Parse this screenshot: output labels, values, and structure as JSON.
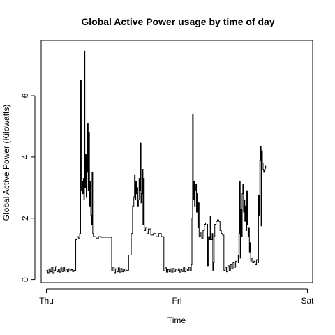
{
  "chart_data": {
    "type": "line",
    "title": "Global Active Power usage by time of day",
    "xlabel": "Time",
    "ylabel": "Global Active Power (Kilowatts)",
    "x_ticks": [
      {
        "value": 0,
        "label": "Thu"
      },
      {
        "value": 1,
        "label": "Fri"
      },
      {
        "value": 2,
        "label": "Sat"
      }
    ],
    "y_ticks": [
      0,
      2,
      4,
      6
    ],
    "xlim": [
      -0.04,
      2.04
    ],
    "ylim": [
      -0.1,
      7.8
    ],
    "grid": false,
    "legend": "none",
    "line_color": "#000000",
    "series": [
      {
        "values": [
          [
            0.0,
            0.3
          ],
          [
            0.01,
            0.22
          ],
          [
            0.02,
            0.35
          ],
          [
            0.03,
            0.25
          ],
          [
            0.04,
            0.4
          ],
          [
            0.05,
            0.22
          ],
          [
            0.06,
            0.3
          ],
          [
            0.07,
            0.42
          ],
          [
            0.08,
            0.25
          ],
          [
            0.09,
            0.33
          ],
          [
            0.1,
            0.24
          ],
          [
            0.11,
            0.38
          ],
          [
            0.12,
            0.26
          ],
          [
            0.13,
            0.4
          ],
          [
            0.14,
            0.27
          ],
          [
            0.15,
            0.33
          ],
          [
            0.16,
            0.25
          ],
          [
            0.17,
            0.35
          ],
          [
            0.18,
            0.28
          ],
          [
            0.19,
            0.32
          ],
          [
            0.2,
            0.26
          ],
          [
            0.21,
            0.3
          ],
          [
            0.225,
            1.3
          ],
          [
            0.235,
            1.4
          ],
          [
            0.245,
            1.35
          ],
          [
            0.255,
            1.5
          ],
          [
            0.262,
            6.5
          ],
          [
            0.268,
            2.9
          ],
          [
            0.272,
            3.2
          ],
          [
            0.278,
            2.8
          ],
          [
            0.283,
            3.3
          ],
          [
            0.287,
            2.6
          ],
          [
            0.291,
            7.45
          ],
          [
            0.295,
            3.0
          ],
          [
            0.3,
            4.1
          ],
          [
            0.305,
            2.7
          ],
          [
            0.31,
            3.5
          ],
          [
            0.315,
            5.1
          ],
          [
            0.32,
            2.9
          ],
          [
            0.325,
            4.8
          ],
          [
            0.33,
            2.4
          ],
          [
            0.335,
            3.2
          ],
          [
            0.34,
            2.1
          ],
          [
            0.345,
            1.8
          ],
          [
            0.35,
            3.5
          ],
          [
            0.355,
            1.5
          ],
          [
            0.36,
            1.4
          ],
          [
            0.38,
            1.35
          ],
          [
            0.4,
            1.4
          ],
          [
            0.42,
            1.38
          ],
          [
            0.5,
            0.28
          ],
          [
            0.51,
            0.4
          ],
          [
            0.52,
            0.22
          ],
          [
            0.53,
            0.35
          ],
          [
            0.54,
            0.25
          ],
          [
            0.55,
            0.38
          ],
          [
            0.56,
            0.24
          ],
          [
            0.57,
            0.36
          ],
          [
            0.58,
            0.25
          ],
          [
            0.59,
            0.33
          ],
          [
            0.6,
            0.27
          ],
          [
            0.61,
            0.3
          ],
          [
            0.63,
            0.8
          ],
          [
            0.65,
            1.5
          ],
          [
            0.66,
            2.4
          ],
          [
            0.67,
            2.7
          ],
          [
            0.675,
            3.4
          ],
          [
            0.68,
            2.6
          ],
          [
            0.685,
            3.2
          ],
          [
            0.69,
            2.8
          ],
          [
            0.695,
            3.0
          ],
          [
            0.7,
            2.4
          ],
          [
            0.705,
            2.6
          ],
          [
            0.71,
            3.3
          ],
          [
            0.715,
            2.9
          ],
          [
            0.72,
            4.45
          ],
          [
            0.725,
            2.5
          ],
          [
            0.73,
            2.8
          ],
          [
            0.735,
            3.6
          ],
          [
            0.74,
            1.8
          ],
          [
            0.745,
            3.3
          ],
          [
            0.75,
            1.6
          ],
          [
            0.76,
            1.7
          ],
          [
            0.77,
            1.5
          ],
          [
            0.78,
            1.65
          ],
          [
            0.8,
            1.45
          ],
          [
            0.82,
            1.5
          ],
          [
            0.84,
            1.4
          ],
          [
            0.86,
            1.5
          ],
          [
            0.88,
            1.4
          ],
          [
            0.9,
            0.28
          ],
          [
            0.91,
            0.38
          ],
          [
            0.92,
            0.24
          ],
          [
            0.93,
            0.33
          ],
          [
            0.94,
            0.25
          ],
          [
            0.95,
            0.35
          ],
          [
            0.96,
            0.24
          ],
          [
            0.97,
            0.36
          ],
          [
            0.98,
            0.26
          ],
          [
            0.99,
            0.33
          ],
          [
            1.0,
            0.28
          ],
          [
            1.01,
            0.35
          ],
          [
            1.02,
            0.24
          ],
          [
            1.03,
            0.32
          ],
          [
            1.04,
            0.26
          ],
          [
            1.05,
            0.4
          ],
          [
            1.06,
            0.25
          ],
          [
            1.07,
            0.34
          ],
          [
            1.08,
            0.3
          ],
          [
            1.09,
            0.4
          ],
          [
            1.1,
            0.28
          ],
          [
            1.11,
            0.5
          ],
          [
            1.115,
            2.0
          ],
          [
            1.12,
            5.4
          ],
          [
            1.125,
            2.6
          ],
          [
            1.13,
            3.2
          ],
          [
            1.135,
            2.4
          ],
          [
            1.14,
            2.9
          ],
          [
            1.145,
            3.1
          ],
          [
            1.15,
            2.2
          ],
          [
            1.155,
            2.8
          ],
          [
            1.16,
            1.7
          ],
          [
            1.165,
            2.5
          ],
          [
            1.17,
            1.4
          ],
          [
            1.18,
            1.55
          ],
          [
            1.19,
            1.35
          ],
          [
            1.2,
            1.6
          ],
          [
            1.21,
            1.8
          ],
          [
            1.22,
            1.85
          ],
          [
            1.23,
            1.8
          ],
          [
            1.235,
            0.45
          ],
          [
            1.24,
            1.4
          ],
          [
            1.25,
            1.3
          ],
          [
            1.255,
            2.05
          ],
          [
            1.26,
            1.3
          ],
          [
            1.27,
            1.5
          ],
          [
            1.275,
            0.3
          ],
          [
            1.28,
            0.55
          ],
          [
            1.285,
            1.4
          ],
          [
            1.29,
            1.8
          ],
          [
            1.3,
            1.9
          ],
          [
            1.31,
            1.95
          ],
          [
            1.32,
            1.9
          ],
          [
            1.33,
            1.6
          ],
          [
            1.34,
            1.5
          ],
          [
            1.35,
            1.45
          ],
          [
            1.36,
            0.3
          ],
          [
            1.37,
            0.4
          ],
          [
            1.38,
            0.25
          ],
          [
            1.39,
            0.45
          ],
          [
            1.4,
            0.3
          ],
          [
            1.41,
            0.5
          ],
          [
            1.42,
            0.35
          ],
          [
            1.43,
            0.55
          ],
          [
            1.44,
            0.4
          ],
          [
            1.45,
            0.6
          ],
          [
            1.46,
            0.8
          ],
          [
            1.47,
            0.55
          ],
          [
            1.475,
            1.5
          ],
          [
            1.48,
            3.2
          ],
          [
            1.485,
            0.7
          ],
          [
            1.49,
            2.3
          ],
          [
            1.495,
            1.4
          ],
          [
            1.5,
            2.8
          ],
          [
            1.505,
            3.1
          ],
          [
            1.51,
            2.2
          ],
          [
            1.515,
            2.6
          ],
          [
            1.52,
            1.9
          ],
          [
            1.525,
            2.4
          ],
          [
            1.53,
            1.6
          ],
          [
            1.535,
            2.9
          ],
          [
            1.54,
            1.8
          ],
          [
            1.545,
            1.4
          ],
          [
            1.55,
            1.7
          ],
          [
            1.555,
            0.9
          ],
          [
            1.56,
            1.2
          ],
          [
            1.565,
            0.6
          ],
          [
            1.57,
            0.7
          ],
          [
            1.58,
            0.55
          ],
          [
            1.59,
            0.6
          ],
          [
            1.6,
            0.5
          ],
          [
            1.61,
            0.65
          ],
          [
            1.62,
            0.55
          ],
          [
            1.625,
            2.75
          ],
          [
            1.63,
            2.1
          ],
          [
            1.635,
            3.9
          ],
          [
            1.64,
            4.35
          ],
          [
            1.645,
            1.75
          ],
          [
            1.65,
            4.2
          ],
          [
            1.655,
            3.8
          ],
          [
            1.66,
            3.6
          ],
          [
            1.665,
            3.5
          ],
          [
            1.67,
            3.55
          ],
          [
            1.675,
            3.7
          ],
          [
            1.68,
            3.62
          ]
        ]
      }
    ]
  }
}
